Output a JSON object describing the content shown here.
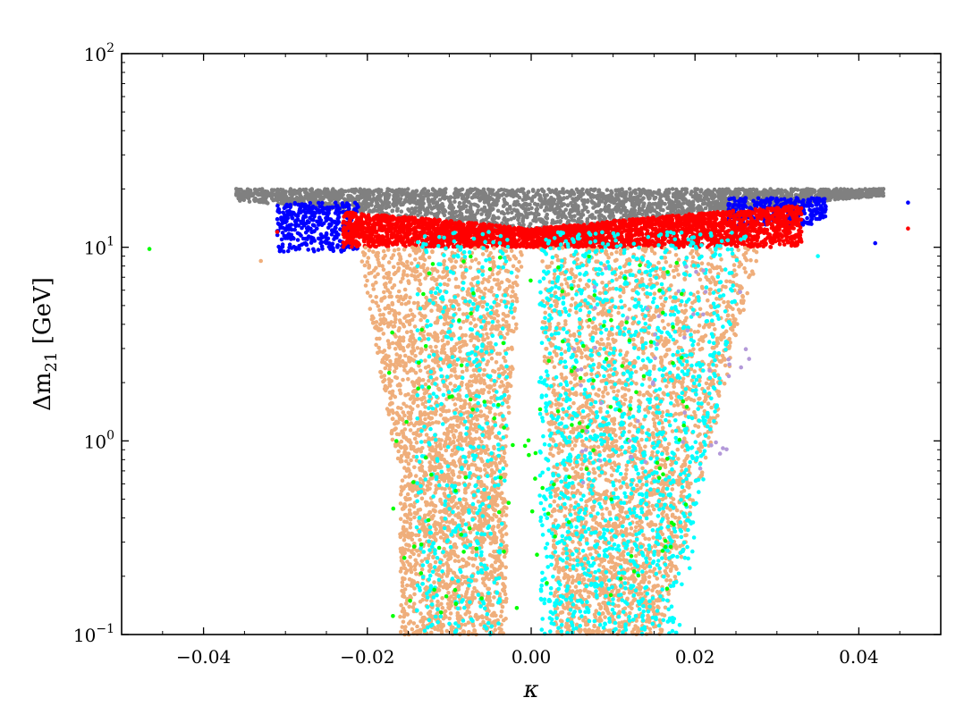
{
  "chart_data": {
    "type": "scatter",
    "title": "",
    "xlabel": "κ",
    "ylabel_prefix": "Δm",
    "ylabel_sub": "21",
    "ylabel_suffix": " [GeV]",
    "xlim": [
      -0.05,
      0.05
    ],
    "ylim": [
      0.1,
      100
    ],
    "yscale": "log",
    "grid": false,
    "legend": "none",
    "x_ticks": [
      {
        "value": -0.04,
        "label": "−0.04"
      },
      {
        "value": -0.02,
        "label": "−0.02"
      },
      {
        "value": 0.0,
        "label": "0.00"
      },
      {
        "value": 0.02,
        "label": "0.02"
      },
      {
        "value": 0.04,
        "label": "0.04"
      }
    ],
    "y_ticks": [
      {
        "value": 0.1,
        "base": "10",
        "exp": "−1"
      },
      {
        "value": 1,
        "base": "10",
        "exp": "0"
      },
      {
        "value": 10,
        "base": "10",
        "exp": "1"
      },
      {
        "value": 100,
        "base": "10",
        "exp": "2"
      }
    ],
    "series": [
      {
        "color": "#808080",
        "region": {
          "x": [
            -0.036,
            0.043
          ],
          "y_upper": 20,
          "y_lower_min": 10,
          "y_lower_max_center": 12
        },
        "count": 2600,
        "points": [
          [
            -0.036,
            20
          ],
          [
            0.043,
            20
          ],
          [
            0.0,
            15
          ]
        ]
      },
      {
        "color": "#0000ff",
        "region": {
          "x": [
            -0.031,
            0.034
          ],
          "y": [
            9,
            18
          ]
        },
        "count": 700,
        "points": [
          [
            -0.03,
            14
          ],
          [
            -0.025,
            10.5
          ],
          [
            0.028,
            17
          ],
          [
            0.042,
            10.5
          ],
          [
            0.046,
            17
          ]
        ]
      },
      {
        "color": "#ff0000",
        "region": {
          "x": [
            -0.023,
            0.033
          ],
          "y": [
            10,
            16.5
          ]
        },
        "count": 3200,
        "points": [
          [
            -0.031,
            12
          ],
          [
            0.046,
            12.5
          ],
          [
            -0.022,
            12
          ],
          [
            0.03,
            14
          ]
        ]
      },
      {
        "color": "#efae7b",
        "region": {
          "x": [
            -0.022,
            0.028
          ],
          "y": [
            0.1,
            10
          ]
        },
        "count": 5500,
        "points": [
          [
            -0.033,
            8.5
          ],
          [
            0.002,
            0.8
          ],
          [
            0.01,
            0.25
          ]
        ]
      },
      {
        "color": "#00ffff",
        "region": {
          "x": [
            -0.013,
            0.029
          ],
          "y": [
            0.1,
            15
          ]
        },
        "count": 1800,
        "points": [
          [
            0.01,
            0.9
          ],
          [
            0.006,
            0.15
          ],
          [
            0.035,
            9
          ]
        ]
      },
      {
        "color": "#00ff00",
        "region": {
          "x": [
            -0.022,
            0.02
          ],
          "y": [
            0.12,
            9
          ]
        },
        "count": 140,
        "points": [
          [
            -0.0466,
            9.8
          ],
          [
            0.019,
            1.5
          ],
          [
            -0.011,
            0.13
          ]
        ]
      },
      {
        "color": "#b399d9",
        "region": {
          "x": [
            0.005,
            0.027
          ],
          "y": [
            0.6,
            8
          ]
        },
        "count": 50,
        "points": [
          [
            0.021,
            4.5
          ],
          [
            0.012,
            1.0
          ]
        ]
      }
    ]
  }
}
